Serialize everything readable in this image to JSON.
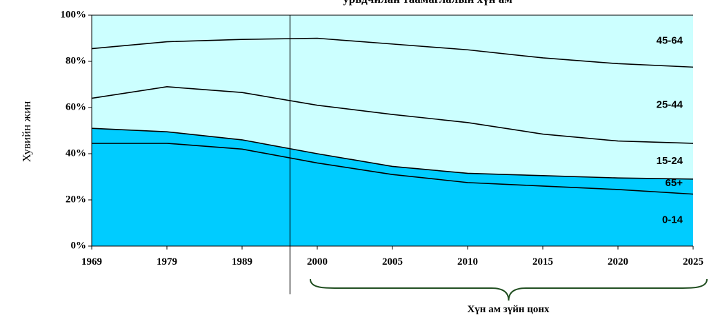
{
  "chart_data": {
    "type": "area",
    "title": "урьдчилан таамаглалын хүн ам",
    "ylabel": "Хувийн жин",
    "xlabel": "Хүн ам зүйн цонх",
    "categories": [
      "1969",
      "1979",
      "1989",
      "2000",
      "2005",
      "2010",
      "2015",
      "2020",
      "2025"
    ],
    "y_ticks": [
      "0%",
      "20%",
      "40%",
      "60%",
      "80%",
      "100%"
    ],
    "ylim": [
      0,
      100
    ],
    "stacking": "cumulative_percent",
    "grid": false,
    "colors": {
      "lower_fill": "#00ccff",
      "upper_fill": "#ccffff",
      "line": "#000000",
      "brace": "#1f4d1f"
    },
    "series": [
      {
        "name": "0-14",
        "band": "lower",
        "values": [
          44.5,
          44.5,
          42.0,
          36.0,
          31.0,
          27.5,
          26.0,
          24.5,
          22.5
        ]
      },
      {
        "name": "65+",
        "band": "lower",
        "values": [
          6.5,
          5.0,
          4.0,
          4.0,
          3.5,
          4.0,
          4.5,
          5.0,
          6.5
        ]
      },
      {
        "name": "15-24",
        "band": "upper",
        "values": [
          13.0,
          19.5,
          20.5,
          21.0,
          22.5,
          22.0,
          18.0,
          16.0,
          15.5
        ]
      },
      {
        "name": "25-44",
        "band": "upper",
        "values": [
          21.5,
          19.5,
          23.0,
          29.0,
          30.5,
          31.5,
          33.0,
          33.5,
          33.0
        ]
      },
      {
        "name": "45-64",
        "band": "upper",
        "values": [
          14.5,
          11.5,
          10.5,
          10.0,
          12.5,
          15.0,
          18.5,
          21.0,
          22.5
        ]
      }
    ],
    "divider_after_category": "1989",
    "bracket_span": [
      "2000",
      "2025"
    ]
  }
}
